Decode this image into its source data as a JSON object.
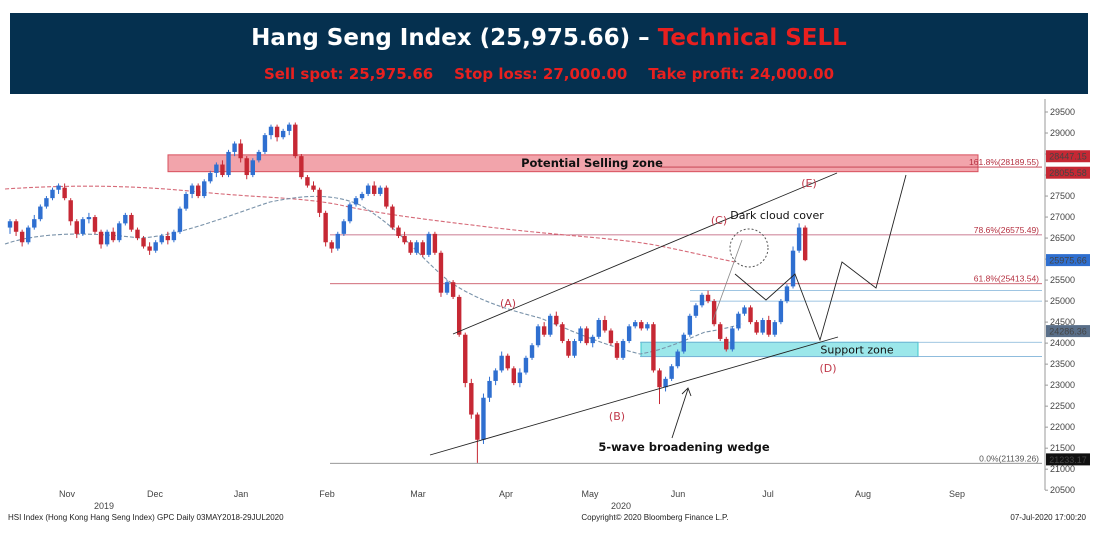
{
  "banner": {
    "title_main": "Hang Seng Index (25,975.66) –",
    "title_signal": "Technical SELL",
    "sell_spot": "Sell spot: 25,975.66",
    "stop_loss": "Stop loss: 27,000.00",
    "take_profit": "Take profit: 24,000.00"
  },
  "chart_data": {
    "type": "candlestick",
    "title": "Hang Seng Index (25,975.66) – Technical SELL",
    "y_ticks": [
      20500,
      21000,
      21500,
      22000,
      22500,
      23000,
      23500,
      24000,
      24500,
      25000,
      25500,
      26000,
      26500,
      27000,
      27500,
      28000,
      28500,
      29000,
      29500
    ],
    "ylim": [
      20300,
      29800
    ],
    "months": [
      "Nov",
      "Dec",
      "Jan",
      "Feb",
      "Mar",
      "Apr",
      "May",
      "Jun",
      "Jul",
      "Aug",
      "Sep"
    ],
    "years": [
      "2019",
      "2020"
    ],
    "price_tags": [
      {
        "value": 28447.15,
        "label": "28447.15",
        "color": "#c62834"
      },
      {
        "value": 28055.58,
        "label": "28055.58",
        "color": "#c62834"
      },
      {
        "value": 25975.66,
        "label": "25975.66",
        "color": "#2f6fd0"
      },
      {
        "value": 24286.36,
        "label": "24286.36",
        "color": "#5a6f89"
      },
      {
        "value": 21233.17,
        "label": "21233.17",
        "color": "#111111"
      }
    ],
    "fib_levels": [
      {
        "label": "161.8%(28189.55)",
        "value": 28189.55
      },
      {
        "label": "78.6%(26575.49)",
        "value": 26575.49
      },
      {
        "label": "61.8%(25413.54)",
        "value": 25413.54
      },
      {
        "label": "0.0%(21139.26)",
        "value": 21139.26
      }
    ],
    "zones": [
      {
        "name": "Potential Selling zone",
        "low": 28080,
        "high": 28480
      },
      {
        "name": "Support zone",
        "low": 23680,
        "high": 24020
      }
    ],
    "wave_labels": [
      "(A)",
      "(B)",
      "(C)",
      "(D)",
      "(E)"
    ],
    "annotations": [
      "Dark cloud cover",
      "5-wave broadening wedge"
    ],
    "candles": [
      [
        26750,
        26950,
        26600,
        26900
      ],
      [
        26900,
        26950,
        26550,
        26650
      ],
      [
        26650,
        26700,
        26300,
        26400
      ],
      [
        26400,
        26800,
        26350,
        26750
      ],
      [
        26750,
        27050,
        26700,
        26950
      ],
      [
        26950,
        27300,
        26900,
        27250
      ],
      [
        27250,
        27500,
        27200,
        27450
      ],
      [
        27450,
        27700,
        27400,
        27650
      ],
      [
        27650,
        27800,
        27550,
        27750
      ],
      [
        27700,
        27800,
        27400,
        27450
      ],
      [
        27400,
        27450,
        26800,
        26900
      ],
      [
        26900,
        26950,
        26500,
        26600
      ],
      [
        26600,
        27000,
        26550,
        26950
      ],
      [
        26950,
        27100,
        26850,
        27000
      ],
      [
        27000,
        27050,
        26600,
        26650
      ],
      [
        26650,
        26700,
        26250,
        26350
      ],
      [
        26350,
        26700,
        26300,
        26650
      ],
      [
        26650,
        26750,
        26400,
        26450
      ],
      [
        26450,
        26900,
        26400,
        26850
      ],
      [
        26850,
        27100,
        26800,
        27050
      ],
      [
        27050,
        27100,
        26650,
        26700
      ],
      [
        26700,
        26750,
        26450,
        26500
      ],
      [
        26500,
        26550,
        26250,
        26300
      ],
      [
        26300,
        26400,
        26100,
        26200
      ],
      [
        26200,
        26450,
        26150,
        26400
      ],
      [
        26400,
        26600,
        26350,
        26550
      ],
      [
        26550,
        26650,
        26350,
        26450
      ],
      [
        26450,
        26700,
        26400,
        26650
      ],
      [
        26650,
        27250,
        26600,
        27200
      ],
      [
        27200,
        27600,
        27150,
        27550
      ],
      [
        27550,
        27800,
        27450,
        27750
      ],
      [
        27750,
        27800,
        27450,
        27500
      ],
      [
        27500,
        27900,
        27450,
        27850
      ],
      [
        27850,
        28100,
        27800,
        28050
      ],
      [
        28050,
        28300,
        27950,
        28250
      ],
      [
        28250,
        28350,
        27950,
        28000
      ],
      [
        28000,
        28600,
        27950,
        28550
      ],
      [
        28550,
        28800,
        28450,
        28750
      ],
      [
        28750,
        28850,
        28300,
        28400
      ],
      [
        28400,
        28450,
        27900,
        28000
      ],
      [
        28000,
        28400,
        27950,
        28350
      ],
      [
        28350,
        28600,
        28300,
        28550
      ],
      [
        28550,
        29000,
        28500,
        28950
      ],
      [
        28950,
        29200,
        28850,
        29150
      ],
      [
        29150,
        29200,
        28800,
        28900
      ],
      [
        28900,
        29100,
        28850,
        29050
      ],
      [
        29050,
        29250,
        28950,
        29200
      ],
      [
        29200,
        29250,
        28400,
        28450
      ],
      [
        28450,
        28500,
        27900,
        27950
      ],
      [
        27950,
        28000,
        27700,
        27750
      ],
      [
        27750,
        27850,
        27600,
        27650
      ],
      [
        27650,
        27700,
        27000,
        27100
      ],
      [
        27100,
        27150,
        26300,
        26400
      ],
      [
        26400,
        26450,
        26150,
        26250
      ],
      [
        26250,
        26650,
        26200,
        26600
      ],
      [
        26600,
        26950,
        26550,
        26900
      ],
      [
        26900,
        27350,
        26850,
        27300
      ],
      [
        27300,
        27500,
        27250,
        27450
      ],
      [
        27450,
        27600,
        27400,
        27550
      ],
      [
        27550,
        27800,
        27500,
        27750
      ],
      [
        27750,
        27850,
        27500,
        27550
      ],
      [
        27550,
        27750,
        27500,
        27700
      ],
      [
        27700,
        27750,
        27200,
        27250
      ],
      [
        27250,
        27300,
        26700,
        26750
      ],
      [
        26750,
        26800,
        26500,
        26550
      ],
      [
        26550,
        26650,
        26350,
        26400
      ],
      [
        26400,
        26450,
        26100,
        26150
      ],
      [
        26150,
        26450,
        26100,
        26400
      ],
      [
        26400,
        26450,
        26050,
        26100
      ],
      [
        26100,
        26650,
        26050,
        26600
      ],
      [
        26600,
        26650,
        26100,
        26150
      ],
      [
        26150,
        26200,
        25100,
        25200
      ],
      [
        25200,
        25500,
        25150,
        25450
      ],
      [
        25450,
        25500,
        25050,
        25100
      ],
      [
        25100,
        25150,
        24150,
        24200
      ],
      [
        24200,
        24250,
        22950,
        23050
      ],
      [
        23050,
        23150,
        22200,
        22300
      ],
      [
        22300,
        22350,
        21150,
        21700
      ],
      [
        21700,
        22800,
        21600,
        22700
      ],
      [
        22700,
        23200,
        22600,
        23100
      ],
      [
        23100,
        23400,
        23000,
        23350
      ],
      [
        23350,
        23800,
        23300,
        23700
      ],
      [
        23700,
        23750,
        23350,
        23400
      ],
      [
        23400,
        23450,
        23000,
        23050
      ],
      [
        23050,
        23400,
        22950,
        23300
      ],
      [
        23300,
        23700,
        23250,
        23650
      ],
      [
        23650,
        24000,
        23600,
        23950
      ],
      [
        23950,
        24450,
        23900,
        24400
      ],
      [
        24400,
        24500,
        24150,
        24200
      ],
      [
        24200,
        24700,
        24150,
        24650
      ],
      [
        24650,
        24750,
        24400,
        24450
      ],
      [
        24450,
        24500,
        24000,
        24050
      ],
      [
        24050,
        24100,
        23650,
        23700
      ],
      [
        23700,
        24100,
        23650,
        24050
      ],
      [
        24050,
        24400,
        24000,
        24350
      ],
      [
        24350,
        24400,
        23950,
        24000
      ],
      [
        24000,
        24200,
        23900,
        24150
      ],
      [
        24150,
        24600,
        24100,
        24550
      ],
      [
        24550,
        24650,
        24250,
        24300
      ],
      [
        24300,
        24350,
        23950,
        24000
      ],
      [
        24000,
        24050,
        23600,
        23650
      ],
      [
        23650,
        24100,
        23600,
        24050
      ],
      [
        24050,
        24450,
        24000,
        24400
      ],
      [
        24400,
        24550,
        24350,
        24500
      ],
      [
        24500,
        24550,
        24300,
        24350
      ],
      [
        24350,
        24500,
        24300,
        24450
      ],
      [
        24450,
        24500,
        23300,
        23350
      ],
      [
        23350,
        23400,
        22550,
        22950
      ],
      [
        22950,
        23200,
        22850,
        23150
      ],
      [
        23150,
        23500,
        23100,
        23450
      ],
      [
        23450,
        23850,
        23400,
        23800
      ],
      [
        23800,
        24250,
        23750,
        24200
      ],
      [
        24200,
        24700,
        24150,
        24650
      ],
      [
        24650,
        24950,
        24600,
        24900
      ],
      [
        24900,
        25200,
        24850,
        25150
      ],
      [
        25150,
        25250,
        24950,
        25000
      ],
      [
        25000,
        25050,
        24400,
        24450
      ],
      [
        24450,
        24500,
        24050,
        24100
      ],
      [
        24100,
        24150,
        23800,
        23850
      ],
      [
        23850,
        24400,
        23800,
        24350
      ],
      [
        24350,
        24750,
        24300,
        24700
      ],
      [
        24700,
        24900,
        24650,
        24850
      ],
      [
        24850,
        24900,
        24450,
        24500
      ],
      [
        24500,
        24550,
        24200,
        24250
      ],
      [
        24250,
        24600,
        24200,
        24550
      ],
      [
        24550,
        24650,
        24150,
        24200
      ],
      [
        24200,
        24550,
        24150,
        24500
      ],
      [
        24500,
        25050,
        24450,
        25000
      ],
      [
        25000,
        25400,
        24950,
        25350
      ],
      [
        25350,
        26300,
        25300,
        26200
      ],
      [
        26200,
        26850,
        26150,
        26750
      ],
      [
        26750,
        26800,
        25950,
        25975
      ]
    ]
  },
  "footer": {
    "source": "HSI Index (Hong Kong Hang Seng Index) GPC  Daily 03MAY2018-29JUL2020",
    "copyright": "Copyright© 2020 Bloomberg Finance L.P.",
    "timestamp": "07-Jul-2020 17:00:20"
  },
  "colors": {
    "banner": "#05304f",
    "up": "#2f6fd0",
    "down": "#c62834",
    "sell_zone": "#f2a4ab",
    "support_zone": "#9be7ea"
  }
}
